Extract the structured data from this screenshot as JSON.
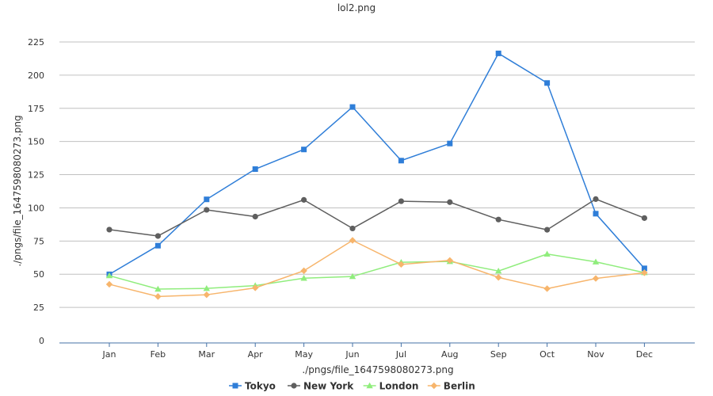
{
  "chart_data": {
    "type": "line",
    "title": "lol2.png",
    "xlabel": "./pngs/file_1647598080273.png",
    "ylabel": "./pngs/file_1647598080273.png",
    "categories": [
      "Jan",
      "Feb",
      "Mar",
      "Apr",
      "May",
      "Jun",
      "Jul",
      "Aug",
      "Sep",
      "Oct",
      "Nov",
      "Dec"
    ],
    "ylim": [
      0,
      225
    ],
    "yticks": [
      "0",
      "25",
      "50",
      "75",
      "100",
      "125",
      "150",
      "175",
      "200",
      "225"
    ],
    "grid": true,
    "legend_position": "bottom",
    "series": [
      {
        "name": "Tokyo",
        "color": "#2f7ed8",
        "marker": "square",
        "values": [
          49.9,
          71.5,
          106.4,
          129.2,
          144.0,
          176.0,
          135.6,
          148.5,
          216.4,
          194.1,
          95.6,
          54.4
        ]
      },
      {
        "name": "New York",
        "color": "#5f5f5f",
        "marker": "circle",
        "values": [
          83.6,
          78.8,
          98.5,
          93.4,
          106.0,
          84.5,
          105.0,
          104.3,
          91.2,
          83.5,
          106.6,
          92.3
        ]
      },
      {
        "name": "London",
        "color": "#90ed7d",
        "marker": "triangle",
        "values": [
          48.9,
          38.8,
          39.3,
          41.4,
          47.0,
          48.3,
          59.0,
          59.6,
          52.4,
          65.2,
          59.3,
          51.2
        ]
      },
      {
        "name": "Berlin",
        "color": "#f7b56c",
        "marker": "diamond",
        "values": [
          42.4,
          33.2,
          34.5,
          39.7,
          52.6,
          75.5,
          57.4,
          60.4,
          47.6,
          39.1,
          46.8,
          51.1
        ]
      }
    ]
  }
}
